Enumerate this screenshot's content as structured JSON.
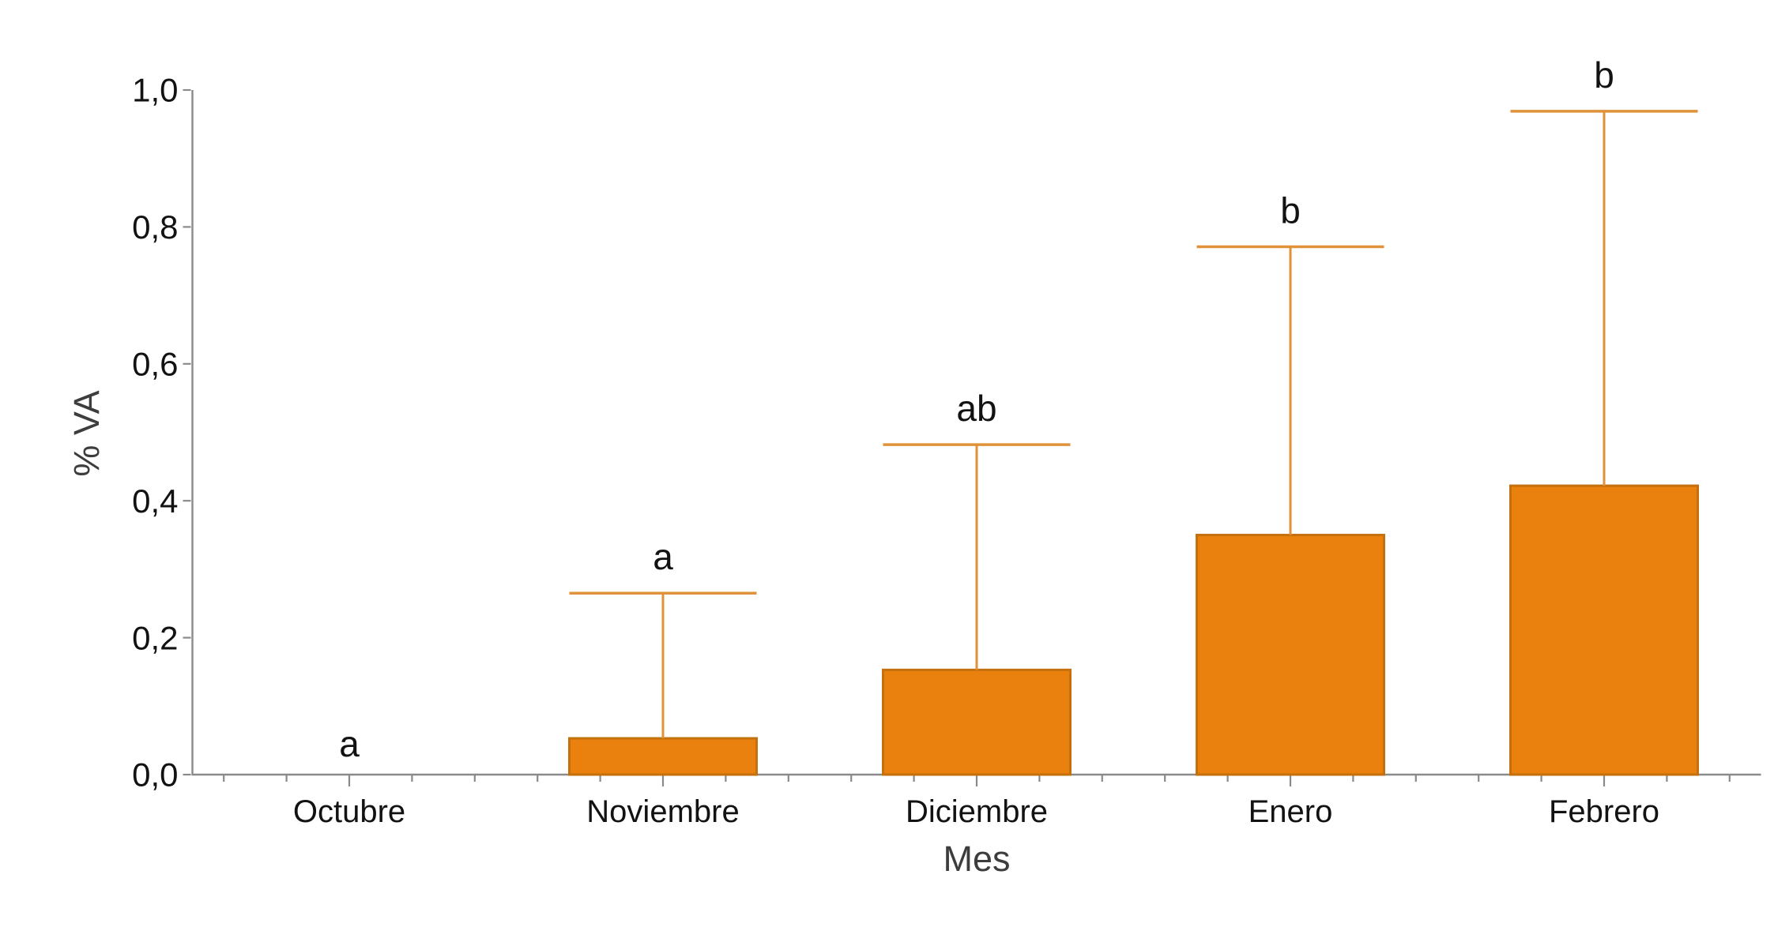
{
  "figure": {
    "background": "#ffffff"
  },
  "chart_data": {
    "type": "bar",
    "title": "",
    "categories": [
      "Octubre",
      "Noviembre",
      "Diciembre",
      "Enero",
      "Febrero"
    ],
    "values": [
      0,
      0.053,
      0.153,
      0.35,
      0.422
    ],
    "error_upper_top": [
      null,
      0.265,
      0.482,
      0.771,
      0.969
    ],
    "significance_letters": [
      "a",
      "a",
      "ab",
      "b",
      "b"
    ],
    "xlabel": "Mes",
    "ylabel": "% VA",
    "ylim": [
      0,
      1
    ],
    "ytick_values": [
      0,
      0.2,
      0.4,
      0.6,
      0.8,
      1
    ],
    "ytick_labels": [
      "0,0",
      "0,2",
      "0,4",
      "0,6",
      "0,8",
      "1,0"
    ],
    "x_minor_tick_step_fraction": 0.2,
    "grid": false,
    "legend_position": "none",
    "colors": {
      "bar_fill": "#EA810E",
      "bar_border": "#C4700C",
      "error_bar": "#E0923A",
      "axis_line": "#8A8A8A",
      "tick_label": "#121212",
      "axis_title": "#3D3D3D",
      "letter": "#121212"
    }
  }
}
